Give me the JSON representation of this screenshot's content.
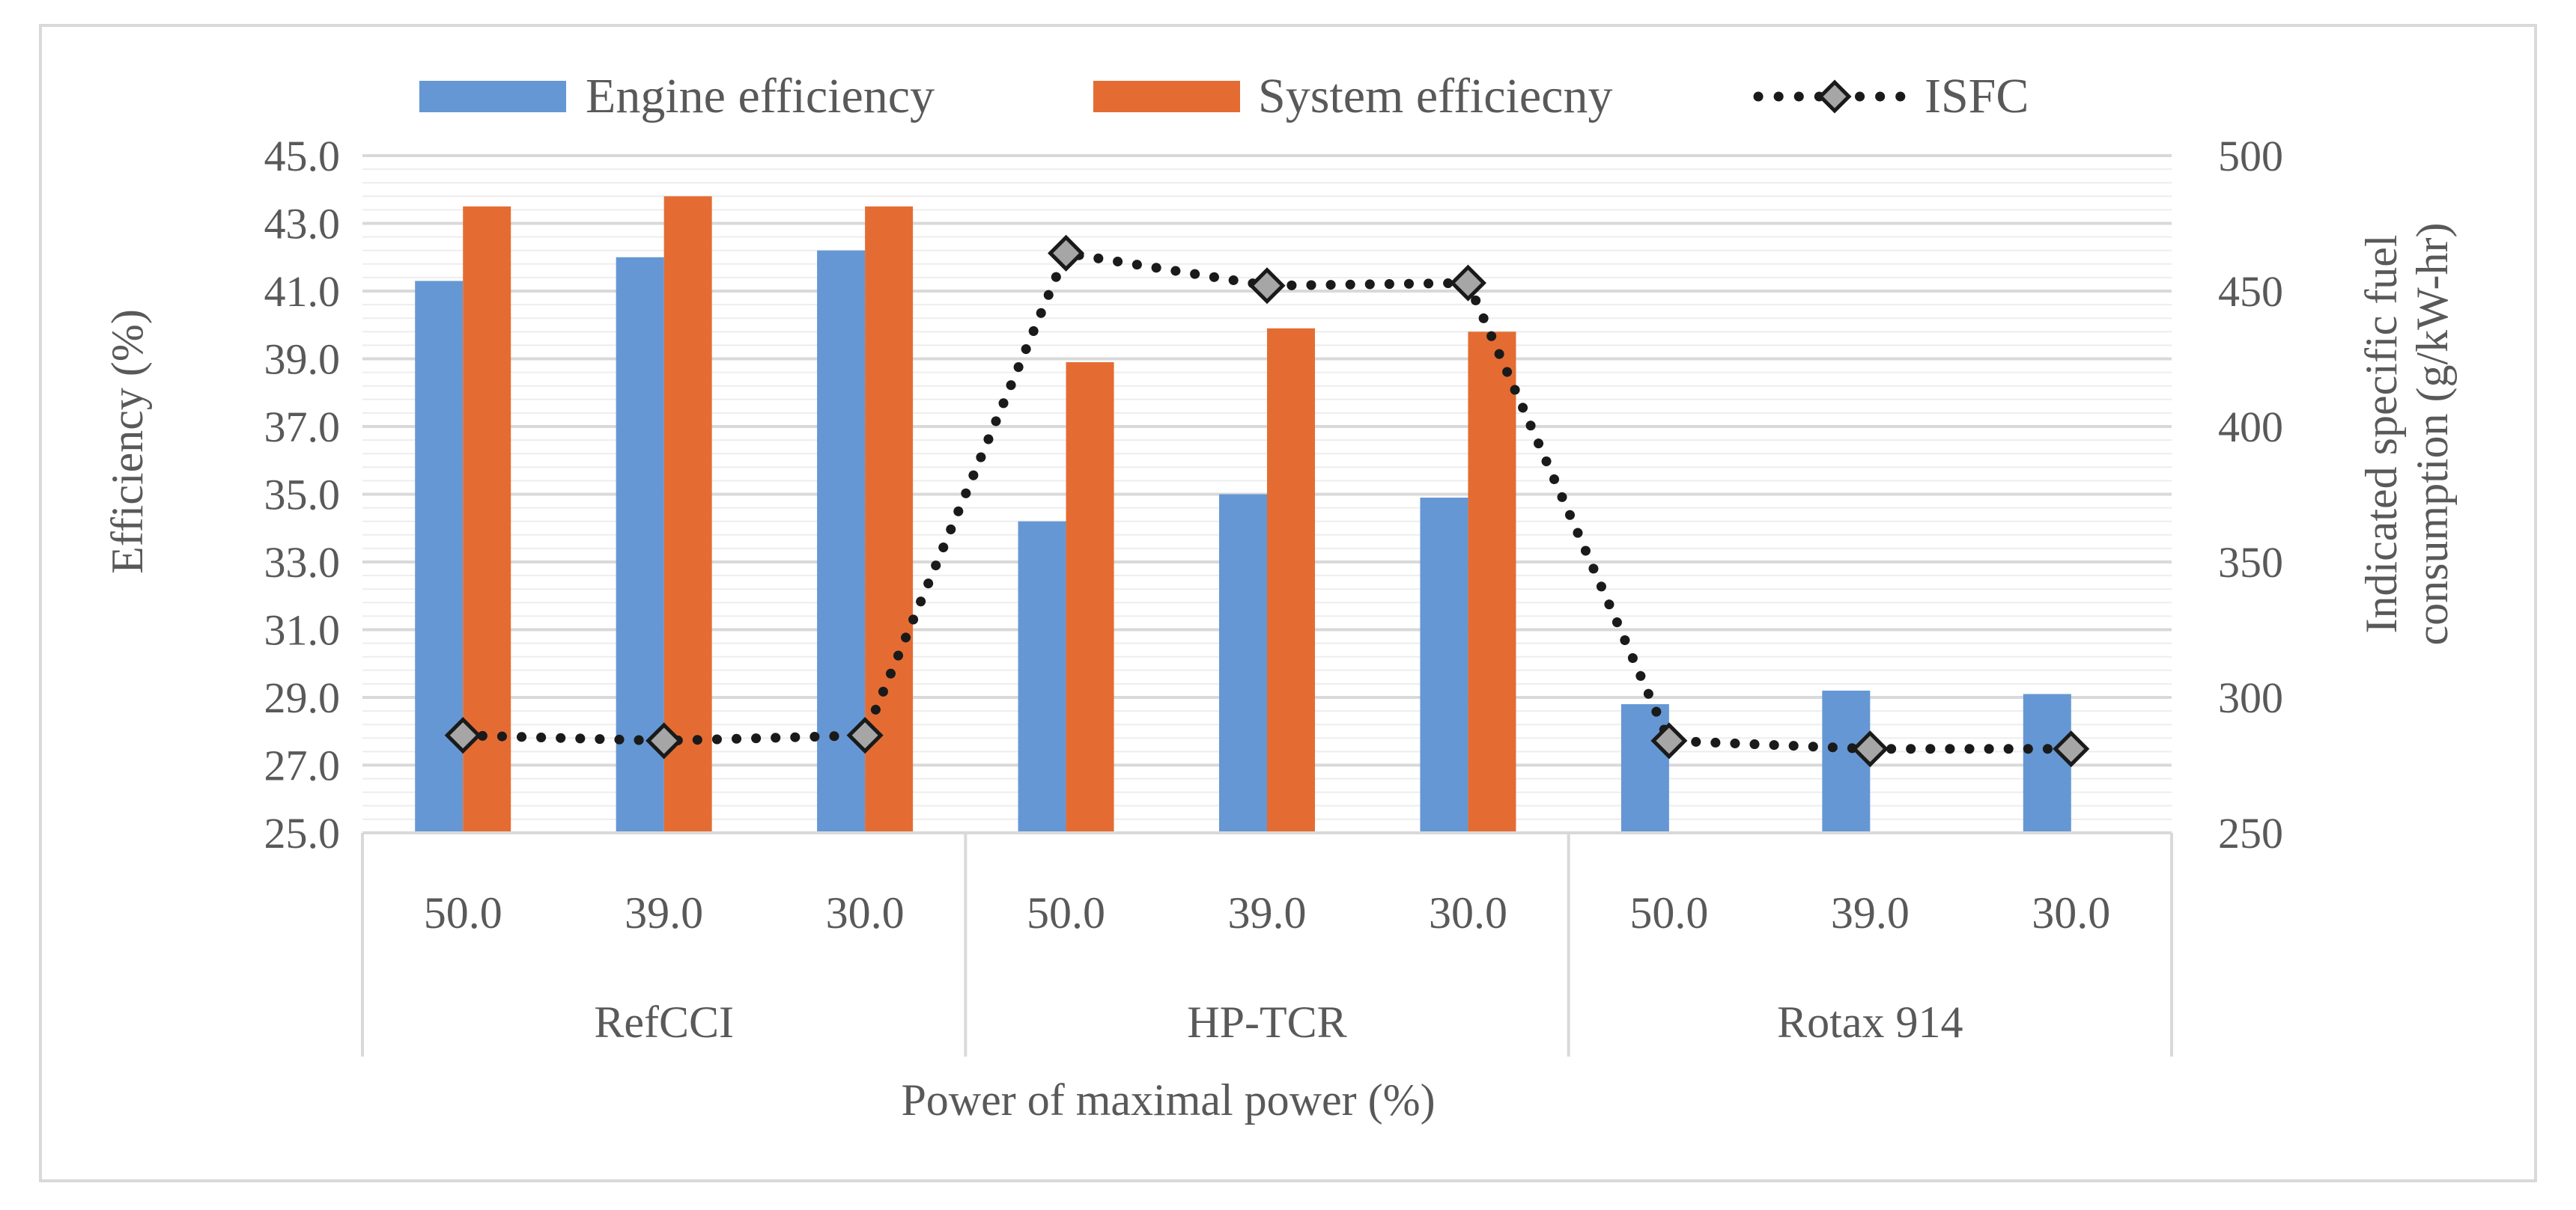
{
  "chart_data": {
    "type": "bar",
    "title": "",
    "xlabel": "Power of maximal power (%)",
    "ylabel": "Efficiency (%)",
    "y2label_line1": "Indicated specific fuel",
    "y2label_line2": "consumption (g/kW-hr)",
    "ylim": [
      25,
      45
    ],
    "y2lim": [
      250,
      500
    ],
    "yticks": [
      "25.0",
      "27.0",
      "29.0",
      "31.0",
      "33.0",
      "35.0",
      "37.0",
      "39.0",
      "41.0",
      "43.0",
      "45.0"
    ],
    "y2ticks": [
      "250",
      "300",
      "350",
      "400",
      "450",
      "500"
    ],
    "categories": [
      "50.0",
      "39.0",
      "30.0",
      "50.0",
      "39.0",
      "30.0",
      "50.0",
      "39.0",
      "30.0"
    ],
    "groups": [
      {
        "label": "RefCCI",
        "count": 3
      },
      {
        "label": "HP-TCR",
        "count": 3
      },
      {
        "label": "Rotax 914",
        "count": 3
      }
    ],
    "legend_position": "top",
    "series": [
      {
        "name": "Engine efficiency",
        "type": "bar",
        "axis": "left",
        "color": "#6597D4",
        "values": [
          41.3,
          42.0,
          42.2,
          34.2,
          35.0,
          34.9,
          28.8,
          29.2,
          29.1
        ]
      },
      {
        "name": "System efficiecny",
        "type": "bar",
        "axis": "left",
        "color": "#E46C33",
        "values": [
          43.5,
          43.8,
          43.5,
          38.9,
          39.9,
          39.8,
          null,
          null,
          null
        ]
      },
      {
        "name": "ISFC",
        "type": "line",
        "axis": "right",
        "color": "#1a1a1a",
        "marker_color": "#A6A6A6",
        "values": [
          286,
          284,
          286,
          464,
          452,
          453,
          284,
          281,
          281
        ]
      }
    ]
  }
}
